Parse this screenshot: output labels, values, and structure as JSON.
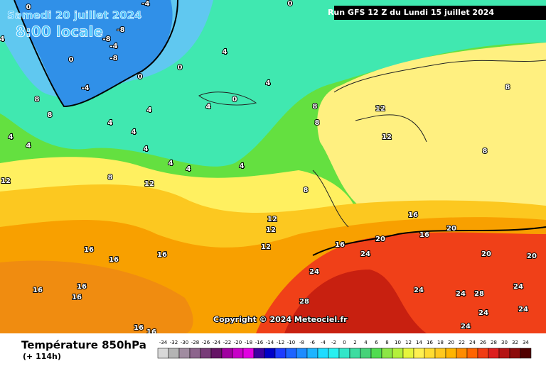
{
  "header": {
    "date": "Samedi 20 juillet 2024",
    "time": "8:00 locale",
    "run": "Run GFS 12 Z du Lundi 15 juillet 2024"
  },
  "map": {
    "copyright": "Copyright © 2024 Meteociel.fr",
    "contour_labels": [
      0,
      0,
      -4,
      -8,
      -8,
      -4,
      -8,
      -4,
      0,
      0,
      0,
      0,
      4,
      4,
      4,
      4,
      4,
      4,
      4,
      4,
      4,
      4,
      4,
      4,
      4,
      8,
      8,
      8,
      8,
      8,
      8,
      8,
      8,
      12,
      12,
      12,
      12,
      12,
      12,
      12,
      16,
      16,
      16,
      16,
      16,
      16,
      16,
      16,
      16,
      16,
      16,
      20,
      20,
      20,
      20,
      24,
      24,
      24,
      24,
      24,
      24,
      24,
      24,
      28,
      28
    ]
  },
  "legend": {
    "title": "Température 850hPa",
    "lead_time": "(+ 114h)",
    "scale": [
      -34,
      -32,
      -30,
      -28,
      -26,
      -24,
      -22,
      -20,
      -18,
      -16,
      -14,
      -12,
      -10,
      -8,
      -6,
      -4,
      -2,
      0,
      2,
      4,
      6,
      8,
      10,
      12,
      14,
      16,
      18,
      20,
      22,
      24,
      26,
      28,
      30,
      32,
      34
    ],
    "colors": [
      "#d8d8d8",
      "#b4b4b4",
      "#a08ca0",
      "#8c648c",
      "#783c78",
      "#641464",
      "#a000a0",
      "#c800c8",
      "#e100e1",
      "#3c00a0",
      "#0000c8",
      "#1e3cff",
      "#1e64ff",
      "#1e8cff",
      "#1eb4ff",
      "#1edcff",
      "#28f0f0",
      "#32e6c8",
      "#3cdca0",
      "#46d278",
      "#50dc50",
      "#8ce646",
      "#b4f03c",
      "#e6f53c",
      "#fff050",
      "#ffdc32",
      "#ffc81e",
      "#ffb400",
      "#ff8c00",
      "#ff6400",
      "#f03c14",
      "#dc1e1e",
      "#b41414",
      "#8c0a0a",
      "#500000"
    ]
  }
}
